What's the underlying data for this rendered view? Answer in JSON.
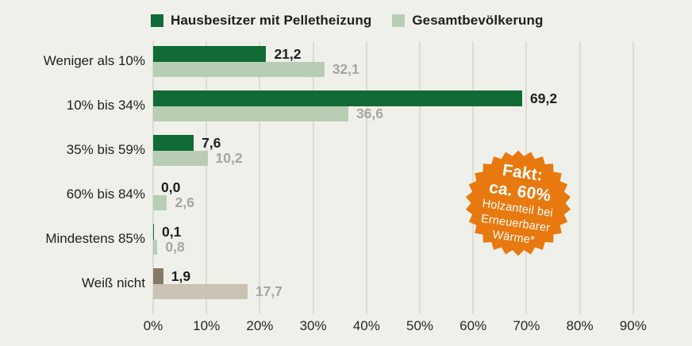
{
  "colors": {
    "background": "#f0f0eb",
    "gridline": "#dcdcd6",
    "series1": "#106b36",
    "series2": "#b9cdb4",
    "series1_weiss_nicht": "#857b65",
    "series2_weiss_nicht": "#cac3b3",
    "value_label_series1": "#1e1e1c",
    "value_label_series2": "#a6a6a1",
    "badge": "#e8790f",
    "badge_text": "#ffffff"
  },
  "legend": {
    "items": [
      {
        "label": "Hausbesitzer mit Pelletheizung",
        "color": "#106b36"
      },
      {
        "label": "Gesamtbevölkerung",
        "color": "#b9cdb4"
      }
    ]
  },
  "chart_data": {
    "type": "bar",
    "orientation": "horizontal",
    "title": "",
    "xlabel": "",
    "ylabel": "",
    "xlim": [
      0,
      90
    ],
    "grid": true,
    "legend_position": "top",
    "categories": [
      "Weniger als 10%",
      "10% bis 34%",
      "35% bis 59%",
      "60% bis 84%",
      "Mindestens 85%",
      "Weiß nicht"
    ],
    "series": [
      {
        "name": "Hausbesitzer mit Pelletheizung",
        "values": [
          21.2,
          69.2,
          7.6,
          0.0,
          0.1,
          1.9
        ],
        "value_labels": [
          "21,2",
          "69,2",
          "7,6",
          "0,0",
          "0,1",
          "1,9"
        ],
        "bar_colors": [
          "#106b36",
          "#106b36",
          "#106b36",
          "#106b36",
          "#106b36",
          "#857b65"
        ],
        "label_color": "#1e1e1c"
      },
      {
        "name": "Gesamtbevölkerung",
        "values": [
          32.1,
          36.6,
          10.2,
          2.6,
          0.8,
          17.7
        ],
        "value_labels": [
          "32,1",
          "36,6",
          "10,2",
          "2,6",
          "0,8",
          "17,7"
        ],
        "bar_colors": [
          "#b9cdb4",
          "#b9cdb4",
          "#b9cdb4",
          "#b9cdb4",
          "#b9cdb4",
          "#cac3b3"
        ],
        "label_color": "#a6a6a1"
      }
    ],
    "x_tick_labels": [
      "0%",
      "10%",
      "20%",
      "30%",
      "40%",
      "50%",
      "60%",
      "70%",
      "80%",
      "90%"
    ]
  },
  "badge": {
    "lines": [
      {
        "text": "Fakt:",
        "emphasis": true
      },
      {
        "text": "ca. 60%",
        "emphasis": true
      },
      {
        "text": "Holzanteil bei",
        "emphasis": false
      },
      {
        "text": "Erneuerbarer",
        "emphasis": false
      },
      {
        "text": "Wärme*",
        "emphasis": false
      }
    ],
    "color": "#e8790f",
    "text_color": "#ffffff"
  }
}
